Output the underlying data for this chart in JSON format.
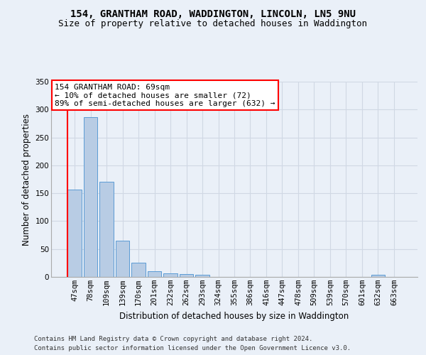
{
  "title1": "154, GRANTHAM ROAD, WADDINGTON, LINCOLN, LN5 9NU",
  "title2": "Size of property relative to detached houses in Waddington",
  "xlabel": "Distribution of detached houses by size in Waddington",
  "ylabel": "Number of detached properties",
  "footer1": "Contains HM Land Registry data © Crown copyright and database right 2024.",
  "footer2": "Contains public sector information licensed under the Open Government Licence v3.0.",
  "bin_labels": [
    "47sqm",
    "78sqm",
    "109sqm",
    "139sqm",
    "170sqm",
    "201sqm",
    "232sqm",
    "262sqm",
    "293sqm",
    "324sqm",
    "355sqm",
    "386sqm",
    "416sqm",
    "447sqm",
    "478sqm",
    "509sqm",
    "539sqm",
    "570sqm",
    "601sqm",
    "632sqm",
    "663sqm"
  ],
  "bar_values": [
    157,
    286,
    170,
    65,
    26,
    10,
    7,
    5,
    4,
    0,
    0,
    0,
    0,
    0,
    0,
    0,
    0,
    0,
    0,
    4,
    0
  ],
  "bar_color": "#b8cce4",
  "bar_edge_color": "#5b9bd5",
  "grid_color": "#d0d8e4",
  "background_color": "#eaf0f8",
  "annotation_box_text": "154 GRANTHAM ROAD: 69sqm\n← 10% of detached houses are smaller (72)\n89% of semi-detached houses are larger (632) →",
  "annotation_box_color": "white",
  "annotation_box_edge_color": "red",
  "marker_line_color": "red",
  "ylim": [
    0,
    350
  ],
  "yticks": [
    0,
    50,
    100,
    150,
    200,
    250,
    300,
    350
  ],
  "title1_fontsize": 10,
  "title2_fontsize": 9,
  "xlabel_fontsize": 8.5,
  "ylabel_fontsize": 8.5,
  "tick_fontsize": 7.5,
  "annotation_fontsize": 8,
  "footer_fontsize": 6.5
}
